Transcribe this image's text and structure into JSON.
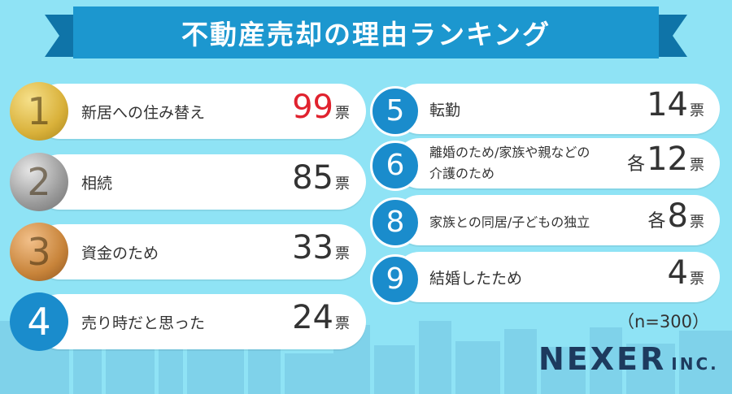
{
  "title": "不動産売却の理由ランキング",
  "colors": {
    "background": "#8fe3f5",
    "banner": "#1c97cf",
    "banner_tail": "#0f74a8",
    "badge_blue": "#1a8ccc",
    "gold": "#d9b13a",
    "silver": "#9a9a9a",
    "bronze": "#c8843a",
    "first_votes": "#e0222e"
  },
  "chart_data": {
    "type": "table",
    "title": "不動産売却の理由ランキング",
    "unit": "票",
    "sample": "（n=300）",
    "items": [
      {
        "rank": "1",
        "reason": "新居への住み替え",
        "votes": 99
      },
      {
        "rank": "2",
        "reason": "相続",
        "votes": 85
      },
      {
        "rank": "3",
        "reason": "資金のため",
        "votes": 33
      },
      {
        "rank": "4",
        "reason": "売り時だと思った",
        "votes": 24
      },
      {
        "rank": "5",
        "reason": "転勤",
        "votes": 14
      },
      {
        "rank": "6",
        "reason": "離婚のため／家族や親などの介護のため",
        "reason_lines": [
          "離婚のため/家族や親などの",
          "介護のため"
        ],
        "votes": 12,
        "prefix": "各"
      },
      {
        "rank": "8",
        "reason": "家族との同居／子どもの独立",
        "reason_lines": [
          "家族との同居/子どもの独立"
        ],
        "votes": 8,
        "prefix": "各"
      },
      {
        "rank": "9",
        "reason": "結婚したため",
        "votes": 4
      }
    ]
  },
  "footer": {
    "sample": "（n=300）",
    "brand_main": "NEXER",
    "brand_sub": "INC."
  }
}
